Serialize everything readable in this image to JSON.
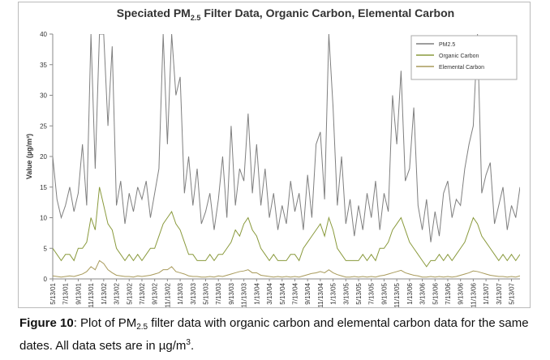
{
  "chart_data": {
    "type": "line",
    "title": {
      "before": "Speciated PM",
      "sub": "2.5",
      "after": "Filter Data, Organic Carbon, Elemental Carbon"
    },
    "y_label": "Value (µg/m³)",
    "categories": [
      "5/13/01",
      null,
      null,
      "7/13/01",
      null,
      null,
      "9/13/01",
      null,
      null,
      "11/13/01",
      null,
      null,
      "1/13/02",
      null,
      null,
      "3/13/02",
      null,
      null,
      "5/13/02",
      null,
      null,
      "7/13/02",
      null,
      null,
      "9/13/02",
      null,
      null,
      "11/13/02",
      null,
      null,
      "1/13/03",
      null,
      null,
      "3/13/03",
      null,
      null,
      "5/13/03",
      null,
      null,
      "7/13/03",
      null,
      null,
      "9/13/03",
      null,
      null,
      "11/13/03",
      null,
      null,
      "1/13/04",
      null,
      null,
      "3/13/04",
      null,
      null,
      "5/13/04",
      null,
      null,
      "7/13/04",
      null,
      null,
      "9/13/04",
      null,
      null,
      "11/13/04",
      null,
      null,
      "1/13/05",
      null,
      null,
      "3/13/05",
      null,
      null,
      "5/13/05",
      null,
      null,
      "7/13/05",
      null,
      null,
      "9/13/05",
      null,
      null,
      "11/13/05",
      null,
      null,
      "1/13/06",
      null,
      null,
      "3/13/06",
      null,
      null,
      "5/13/06",
      null,
      null,
      "7/13/06",
      null,
      null,
      "9/13/06",
      null,
      null,
      "11/13/06",
      null,
      null,
      "1/13/07",
      null,
      null,
      "3/13/07",
      null,
      null,
      "5/13/07",
      null,
      null
    ],
    "series": [
      {
        "name": "PM2.5",
        "color": "#7f7f7f",
        "values": [
          20,
          13,
          10,
          12,
          15,
          11,
          14,
          22,
          12,
          40,
          18,
          40,
          40,
          25,
          38,
          12,
          16,
          9,
          14,
          11,
          15,
          13,
          16,
          10,
          14,
          18,
          40,
          22,
          40,
          30,
          33,
          14,
          20,
          12,
          18,
          9,
          11,
          14,
          8,
          13,
          20,
          10,
          25,
          12,
          18,
          16,
          27,
          14,
          22,
          12,
          18,
          10,
          14,
          8,
          12,
          9,
          16,
          11,
          14,
          8,
          17,
          10,
          22,
          24,
          13,
          40,
          28,
          12,
          20,
          9,
          13,
          7,
          12,
          8,
          14,
          10,
          16,
          8,
          14,
          11,
          30,
          22,
          34,
          16,
          18,
          28,
          12,
          8,
          13,
          6,
          11,
          7,
          14,
          16,
          10,
          13,
          12,
          18,
          22,
          25,
          40,
          14,
          17,
          19,
          9,
          12,
          15,
          8,
          12,
          10,
          15
        ]
      },
      {
        "name": "Organic Carbon",
        "color": "#8a9a3d",
        "values": [
          5,
          4,
          3,
          4,
          4,
          3,
          5,
          5,
          6,
          10,
          8,
          15,
          12,
          9,
          8,
          5,
          4,
          3,
          4,
          3,
          4,
          3,
          4,
          5,
          5,
          7,
          9,
          10,
          11,
          9,
          8,
          6,
          4,
          4,
          3,
          3,
          3,
          4,
          3,
          4,
          4,
          5,
          6,
          8,
          7,
          9,
          10,
          8,
          7,
          5,
          4,
          3,
          4,
          3,
          3,
          3,
          4,
          4,
          3,
          5,
          6,
          7,
          8,
          9,
          7,
          10,
          8,
          5,
          4,
          3,
          3,
          3,
          3,
          4,
          3,
          4,
          3,
          5,
          5,
          6,
          8,
          9,
          10,
          8,
          6,
          5,
          4,
          3,
          2,
          3,
          3,
          4,
          3,
          4,
          3,
          4,
          5,
          6,
          8,
          10,
          9,
          7,
          6,
          5,
          4,
          3,
          4,
          3,
          4,
          3,
          4
        ]
      },
      {
        "name": "Elemental Carbon",
        "color": "#a89a5a",
        "values": [
          0.5,
          0.4,
          0.3,
          0.4,
          0.5,
          0.4,
          0.6,
          0.8,
          1.2,
          2,
          1.5,
          3,
          2.5,
          1.5,
          1,
          0.6,
          0.5,
          0.4,
          0.4,
          0.3,
          0.5,
          0.4,
          0.5,
          0.6,
          0.8,
          1,
          1.5,
          1.5,
          2,
          1.2,
          1,
          0.8,
          0.5,
          0.4,
          0.4,
          0.3,
          0.3,
          0.4,
          0.3,
          0.5,
          0.4,
          0.6,
          0.8,
          1,
          1.2,
          1.3,
          1.5,
          1,
          1,
          0.6,
          0.5,
          0.4,
          0.3,
          0.4,
          0.3,
          0.4,
          0.3,
          0.4,
          0.3,
          0.5,
          0.7,
          0.9,
          1,
          1.2,
          1,
          1.5,
          1,
          0.7,
          0.5,
          0.3,
          0.3,
          0.4,
          0.3,
          0.4,
          0.3,
          0.4,
          0.3,
          0.5,
          0.6,
          0.8,
          1,
          1.2,
          1.4,
          1,
          0.8,
          0.6,
          0.5,
          0.3,
          0.3,
          0.4,
          0.3,
          0.4,
          0.3,
          0.4,
          0.3,
          0.4,
          0.6,
          0.8,
          1,
          1.3,
          1.2,
          1,
          0.8,
          0.6,
          0.5,
          0.4,
          0.4,
          0.3,
          0.4,
          0.3,
          0.5
        ]
      }
    ],
    "ylim": [
      0,
      40
    ],
    "yticks": [
      0,
      5,
      10,
      15,
      20,
      25,
      30,
      35,
      40
    ],
    "legend": "upper right"
  },
  "caption": {
    "label": "Figure 10",
    "text1": ": Plot of PM",
    "sub": "2.5",
    "text2": " filter data with organic carbon and elemental carbon data for the same dates. All data sets are in µg/m",
    "sup": "3",
    "text3": "."
  }
}
